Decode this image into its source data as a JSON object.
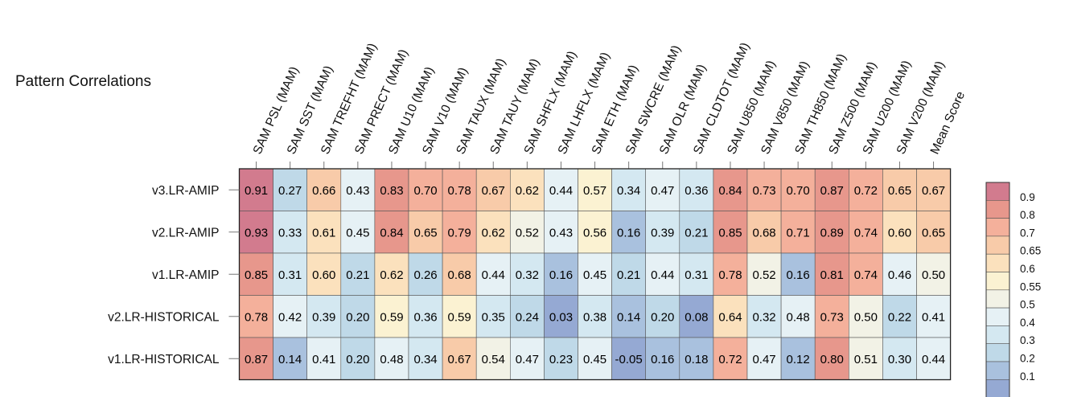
{
  "title": "Pattern Correlations",
  "chart_data": {
    "type": "heatmap",
    "title": "Pattern Correlations",
    "columns": [
      "SAM PSL (MAM)",
      "SAM SST (MAM)",
      "SAM TREFHT (MAM)",
      "SAM PRECT (MAM)",
      "SAM U10 (MAM)",
      "SAM V10 (MAM)",
      "SAM TAUX (MAM)",
      "SAM TAUY (MAM)",
      "SAM SHFLX (MAM)",
      "SAM LHFLX (MAM)",
      "SAM ETH (MAM)",
      "SAM SWCRE (MAM)",
      "SAM OLR (MAM)",
      "SAM CLDTOT (MAM)",
      "SAM U850 (MAM)",
      "SAM V850 (MAM)",
      "SAM TH850 (MAM)",
      "SAM Z500 (MAM)",
      "SAM U200 (MAM)",
      "SAM V200 (MAM)",
      "Mean Score"
    ],
    "rows": [
      "v3.LR-AMIP",
      "v2.LR-AMIP",
      "v1.LR-AMIP",
      "v2.LR-HISTORICAL",
      "v1.LR-HISTORICAL"
    ],
    "values": [
      [
        "0.91",
        "0.27",
        "0.66",
        "0.43",
        "0.83",
        "0.70",
        "0.78",
        "0.67",
        "0.62",
        "0.44",
        "0.57",
        "0.34",
        "0.47",
        "0.36",
        "0.84",
        "0.73",
        "0.70",
        "0.87",
        "0.72",
        "0.65",
        "0.67"
      ],
      [
        "0.93",
        "0.33",
        "0.61",
        "0.45",
        "0.84",
        "0.65",
        "0.79",
        "0.62",
        "0.52",
        "0.43",
        "0.56",
        "0.16",
        "0.39",
        "0.21",
        "0.85",
        "0.68",
        "0.71",
        "0.89",
        "0.74",
        "0.60",
        "0.65"
      ],
      [
        "0.85",
        "0.31",
        "0.60",
        "0.21",
        "0.62",
        "0.26",
        "0.68",
        "0.44",
        "0.32",
        "0.16",
        "0.45",
        "0.21",
        "0.44",
        "0.31",
        "0.78",
        "0.52",
        "0.16",
        "0.81",
        "0.74",
        "0.46",
        "0.50"
      ],
      [
        "0.78",
        "0.42",
        "0.39",
        "0.20",
        "0.59",
        "0.36",
        "0.59",
        "0.35",
        "0.24",
        "0.03",
        "0.38",
        "0.14",
        "0.20",
        "0.08",
        "0.64",
        "0.32",
        "0.48",
        "0.73",
        "0.50",
        "0.22",
        "0.41"
      ],
      [
        "0.87",
        "0.14",
        "0.41",
        "0.20",
        "0.48",
        "0.34",
        "0.67",
        "0.54",
        "0.47",
        "0.23",
        "0.45",
        "-0.05",
        "0.16",
        "0.18",
        "0.72",
        "0.47",
        "0.12",
        "0.80",
        "0.51",
        "0.30",
        "0.44"
      ]
    ],
    "colorbar": {
      "ticks": [
        "0.9",
        "0.8",
        "0.7",
        "0.65",
        "0.6",
        "0.55",
        "0.5",
        "0.4",
        "0.3",
        "0.2",
        "0.1"
      ],
      "bounds": [
        1.0,
        0.9,
        0.8,
        0.7,
        0.65,
        0.6,
        0.55,
        0.5,
        0.4,
        0.3,
        0.2,
        0.1,
        0.0
      ],
      "colors": [
        "#d27b8e",
        "#e7978c",
        "#f4b09b",
        "#f8cba9",
        "#fbe1bd",
        "#fbf2d2",
        "#f2f2e6",
        "#e6f1f5",
        "#d4e8f1",
        "#bfd9e8",
        "#a9c1de",
        "#95a9d3"
      ]
    }
  }
}
